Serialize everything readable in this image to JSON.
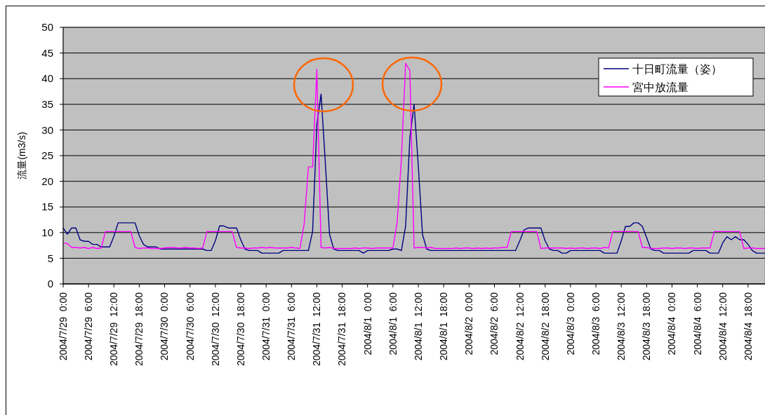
{
  "chart_data": {
    "type": "line",
    "ylabel": "流量(m3/s)",
    "ylim": [
      0,
      50
    ],
    "yticks": [
      0,
      5,
      10,
      15,
      20,
      25,
      30,
      35,
      40,
      45,
      50
    ],
    "xlim": [
      "2004-07-29T00:00",
      "2004-08-04T22:00"
    ],
    "xticks": [
      {
        "value": "2004-07-29T00:00",
        "label": "2004/7/29  0:00"
      },
      {
        "value": "2004-07-29T06:00",
        "label": "2004/7/29  6:00"
      },
      {
        "value": "2004-07-29T12:00",
        "label": "2004/7/29  12:00"
      },
      {
        "value": "2004-07-29T18:00",
        "label": "2004/7/29  18:00"
      },
      {
        "value": "2004-07-30T00:00",
        "label": "2004/7/30  0:00"
      },
      {
        "value": "2004-07-30T06:00",
        "label": "2004/7/30  6:00"
      },
      {
        "value": "2004-07-30T12:00",
        "label": "2004/7/30  12:00"
      },
      {
        "value": "2004-07-30T18:00",
        "label": "2004/7/30  18:00"
      },
      {
        "value": "2004-07-31T00:00",
        "label": "2004/7/31  0:00"
      },
      {
        "value": "2004-07-31T06:00",
        "label": "2004/7/31  6:00"
      },
      {
        "value": "2004-07-31T12:00",
        "label": "2004/7/31  12:00"
      },
      {
        "value": "2004-07-31T18:00",
        "label": "2004/7/31  18:00"
      },
      {
        "value": "2004-08-01T00:00",
        "label": "2004/8/1  0:00"
      },
      {
        "value": "2004-08-01T06:00",
        "label": "2004/8/1  6:00"
      },
      {
        "value": "2004-08-01T12:00",
        "label": "2004/8/1  12:00"
      },
      {
        "value": "2004-08-01T18:00",
        "label": "2004/8/1  18:00"
      },
      {
        "value": "2004-08-02T00:00",
        "label": "2004/8/2  0:00"
      },
      {
        "value": "2004-08-02T06:00",
        "label": "2004/8/2  6:00"
      },
      {
        "value": "2004-08-02T12:00",
        "label": "2004/8/2  12:00"
      },
      {
        "value": "2004-08-02T18:00",
        "label": "2004/8/2  18:00"
      },
      {
        "value": "2004-08-03T00:00",
        "label": "2004/8/3  0:00"
      },
      {
        "value": "2004-08-03T06:00",
        "label": "2004/8/3  6:00"
      },
      {
        "value": "2004-08-03T12:00",
        "label": "2004/8/3  12:00"
      },
      {
        "value": "2004-08-03T18:00",
        "label": "2004/8/3  18:00"
      },
      {
        "value": "2004-08-04T00:00",
        "label": "2004/8/4  0:00"
      },
      {
        "value": "2004-08-04T06:00",
        "label": "2004/8/4  6:00"
      },
      {
        "value": "2004-08-04T12:00",
        "label": "2004/8/4  12:00"
      },
      {
        "value": "2004-08-04T18:00",
        "label": "2004/8/4  18:00"
      }
    ],
    "x": [
      "2004-07-29T00:00",
      "2004-07-29T01:00",
      "2004-07-29T02:00",
      "2004-07-29T03:00",
      "2004-07-29T04:00",
      "2004-07-29T05:00",
      "2004-07-29T06:00",
      "2004-07-29T07:00",
      "2004-07-29T08:00",
      "2004-07-29T09:00",
      "2004-07-29T10:00",
      "2004-07-29T11:00",
      "2004-07-29T12:00",
      "2004-07-29T13:00",
      "2004-07-29T14:00",
      "2004-07-29T15:00",
      "2004-07-29T16:00",
      "2004-07-29T17:00",
      "2004-07-29T18:00",
      "2004-07-29T19:00",
      "2004-07-29T20:00",
      "2004-07-29T21:00",
      "2004-07-29T22:00",
      "2004-07-29T23:00",
      "2004-07-30T00:00",
      "2004-07-30T01:00",
      "2004-07-30T02:00",
      "2004-07-30T03:00",
      "2004-07-30T04:00",
      "2004-07-30T05:00",
      "2004-07-30T06:00",
      "2004-07-30T07:00",
      "2004-07-30T08:00",
      "2004-07-30T09:00",
      "2004-07-30T10:00",
      "2004-07-30T11:00",
      "2004-07-30T12:00",
      "2004-07-30T13:00",
      "2004-07-30T14:00",
      "2004-07-30T15:00",
      "2004-07-30T16:00",
      "2004-07-30T17:00",
      "2004-07-30T18:00",
      "2004-07-30T19:00",
      "2004-07-30T20:00",
      "2004-07-30T21:00",
      "2004-07-30T22:00",
      "2004-07-30T23:00",
      "2004-07-31T00:00",
      "2004-07-31T01:00",
      "2004-07-31T02:00",
      "2004-07-31T03:00",
      "2004-07-31T04:00",
      "2004-07-31T05:00",
      "2004-07-31T06:00",
      "2004-07-31T07:00",
      "2004-07-31T08:00",
      "2004-07-31T09:00",
      "2004-07-31T10:00",
      "2004-07-31T11:00",
      "2004-07-31T12:00",
      "2004-07-31T13:00",
      "2004-07-31T14:00",
      "2004-07-31T15:00",
      "2004-07-31T16:00",
      "2004-07-31T17:00",
      "2004-07-31T18:00",
      "2004-07-31T19:00",
      "2004-07-31T20:00",
      "2004-07-31T21:00",
      "2004-07-31T22:00",
      "2004-07-31T23:00",
      "2004-08-01T00:00",
      "2004-08-01T01:00",
      "2004-08-01T02:00",
      "2004-08-01T03:00",
      "2004-08-01T04:00",
      "2004-08-01T05:00",
      "2004-08-01T06:00",
      "2004-08-01T07:00",
      "2004-08-01T08:00",
      "2004-08-01T09:00",
      "2004-08-01T10:00",
      "2004-08-01T11:00",
      "2004-08-01T12:00",
      "2004-08-01T13:00",
      "2004-08-01T14:00",
      "2004-08-01T15:00",
      "2004-08-01T16:00",
      "2004-08-01T17:00",
      "2004-08-01T18:00",
      "2004-08-01T19:00",
      "2004-08-01T20:00",
      "2004-08-01T21:00",
      "2004-08-01T22:00",
      "2004-08-01T23:00",
      "2004-08-02T00:00",
      "2004-08-02T01:00",
      "2004-08-02T02:00",
      "2004-08-02T03:00",
      "2004-08-02T04:00",
      "2004-08-02T05:00",
      "2004-08-02T06:00",
      "2004-08-02T07:00",
      "2004-08-02T08:00",
      "2004-08-02T09:00",
      "2004-08-02T10:00",
      "2004-08-02T11:00",
      "2004-08-02T12:00",
      "2004-08-02T13:00",
      "2004-08-02T14:00",
      "2004-08-02T15:00",
      "2004-08-02T16:00",
      "2004-08-02T17:00",
      "2004-08-02T18:00",
      "2004-08-02T19:00",
      "2004-08-02T20:00",
      "2004-08-02T21:00",
      "2004-08-02T22:00",
      "2004-08-02T23:00",
      "2004-08-03T00:00",
      "2004-08-03T01:00",
      "2004-08-03T02:00",
      "2004-08-03T03:00",
      "2004-08-03T04:00",
      "2004-08-03T05:00",
      "2004-08-03T06:00",
      "2004-08-03T07:00",
      "2004-08-03T08:00",
      "2004-08-03T09:00",
      "2004-08-03T10:00",
      "2004-08-03T11:00",
      "2004-08-03T12:00",
      "2004-08-03T13:00",
      "2004-08-03T14:00",
      "2004-08-03T15:00",
      "2004-08-03T16:00",
      "2004-08-03T17:00",
      "2004-08-03T18:00",
      "2004-08-03T19:00",
      "2004-08-03T20:00",
      "2004-08-03T21:00",
      "2004-08-03T22:00",
      "2004-08-03T23:00",
      "2004-08-04T00:00",
      "2004-08-04T01:00",
      "2004-08-04T02:00",
      "2004-08-04T03:00",
      "2004-08-04T04:00",
      "2004-08-04T05:00",
      "2004-08-04T06:00",
      "2004-08-04T07:00",
      "2004-08-04T08:00",
      "2004-08-04T09:00",
      "2004-08-04T10:00",
      "2004-08-04T11:00",
      "2004-08-04T12:00",
      "2004-08-04T13:00",
      "2004-08-04T14:00",
      "2004-08-04T15:00",
      "2004-08-04T16:00",
      "2004-08-04T17:00",
      "2004-08-04T18:00",
      "2004-08-04T19:00",
      "2004-08-04T20:00",
      "2004-08-04T21:00",
      "2004-08-04T22:00"
    ],
    "series": [
      {
        "name": "十日町流量（姿）",
        "color": "#000080",
        "values": [
          10.9,
          9.7,
          10.9,
          10.9,
          8.6,
          8.3,
          8.3,
          7.7,
          7.7,
          7.2,
          7.2,
          7.2,
          9.3,
          11.9,
          11.9,
          11.9,
          11.9,
          11.9,
          9.4,
          7.7,
          7.2,
          7.2,
          7.2,
          6.8,
          6.8,
          6.8,
          6.8,
          6.8,
          6.8,
          6.8,
          6.8,
          6.8,
          6.8,
          6.8,
          6.5,
          6.5,
          8.4,
          11.3,
          11.3,
          10.9,
          10.9,
          10.9,
          8.6,
          6.8,
          6.5,
          6.5,
          6.5,
          6.0,
          6.0,
          6.0,
          6.0,
          6.0,
          6.5,
          6.5,
          6.5,
          6.5,
          6.5,
          6.5,
          6.5,
          10.2,
          31.0,
          37.0,
          23.7,
          9.7,
          6.8,
          6.5,
          6.5,
          6.5,
          6.5,
          6.5,
          6.5,
          6.0,
          6.5,
          6.5,
          6.5,
          6.5,
          6.5,
          6.5,
          6.8,
          6.8,
          6.5,
          11.3,
          28.5,
          35.0,
          23.0,
          9.6,
          6.8,
          6.5,
          6.5,
          6.5,
          6.5,
          6.5,
          6.5,
          6.5,
          6.5,
          6.5,
          6.5,
          6.5,
          6.5,
          6.5,
          6.5,
          6.5,
          6.5,
          6.5,
          6.5,
          6.5,
          6.5,
          6.5,
          8.4,
          10.5,
          10.9,
          10.9,
          10.9,
          10.9,
          8.4,
          6.8,
          6.5,
          6.5,
          6.0,
          6.0,
          6.5,
          6.5,
          6.5,
          6.5,
          6.5,
          6.5,
          6.5,
          6.5,
          6.0,
          6.0,
          6.0,
          6.0,
          8.4,
          11.2,
          11.2,
          11.9,
          11.9,
          11.2,
          9.0,
          6.8,
          6.5,
          6.5,
          6.0,
          6.0,
          6.0,
          6.0,
          6.0,
          6.0,
          6.0,
          6.5,
          6.5,
          6.5,
          6.5,
          6.0,
          6.0,
          6.0,
          8.0,
          9.2,
          8.6,
          9.2,
          8.6,
          8.6,
          7.7,
          6.5,
          6.0,
          6.0,
          6.0
        ]
      },
      {
        "name": "宮中放流量",
        "color": "#ff00ff",
        "values": [
          7.9,
          7.9,
          7.1,
          7.1,
          7.0,
          7.1,
          6.9,
          7.1,
          6.9,
          7.0,
          10.2,
          10.2,
          10.2,
          10.2,
          10.2,
          10.2,
          10.2,
          7.1,
          6.9,
          7.0,
          7.0,
          6.9,
          6.9,
          6.9,
          7.0,
          7.1,
          7.1,
          7.0,
          7.0,
          7.1,
          7.0,
          7.0,
          6.9,
          7.0,
          10.2,
          10.2,
          10.2,
          10.2,
          10.2,
          10.2,
          10.2,
          7.1,
          7.0,
          7.0,
          6.9,
          7.0,
          7.0,
          7.1,
          7.0,
          7.1,
          7.0,
          7.0,
          7.0,
          7.0,
          7.1,
          7.0,
          6.9,
          11.7,
          22.8,
          22.8,
          41.8,
          7.1,
          7.0,
          7.1,
          6.9,
          6.9,
          6.9,
          6.9,
          6.9,
          7.0,
          6.9,
          7.0,
          7.0,
          6.9,
          7.0,
          7.0,
          7.0,
          7.0,
          7.0,
          12.1,
          24.4,
          43.0,
          41.6,
          7.0,
          7.1,
          7.1,
          7.0,
          7.1,
          6.9,
          6.9,
          6.9,
          6.9,
          6.9,
          7.0,
          6.9,
          7.0,
          7.0,
          6.9,
          7.0,
          6.9,
          7.0,
          6.9,
          7.0,
          7.0,
          7.1,
          7.1,
          10.2,
          10.2,
          10.2,
          10.2,
          10.2,
          10.2,
          10.2,
          6.9,
          7.0,
          7.0,
          7.0,
          7.0,
          7.0,
          6.9,
          7.0,
          6.9,
          7.0,
          7.0,
          6.9,
          7.0,
          7.0,
          6.9,
          7.1,
          7.0,
          10.2,
          10.2,
          10.2,
          10.2,
          10.2,
          10.2,
          10.2,
          7.1,
          7.1,
          6.9,
          6.9,
          6.9,
          7.0,
          7.0,
          6.9,
          7.0,
          7.0,
          6.9,
          7.0,
          7.0,
          6.9,
          7.0,
          7.0,
          7.0,
          10.2,
          10.2,
          10.2,
          10.2,
          10.2,
          10.2,
          10.2,
          6.9,
          7.0,
          7.0,
          6.9,
          6.9,
          6.9
        ]
      }
    ],
    "grid": "y",
    "legend": "top right"
  }
}
